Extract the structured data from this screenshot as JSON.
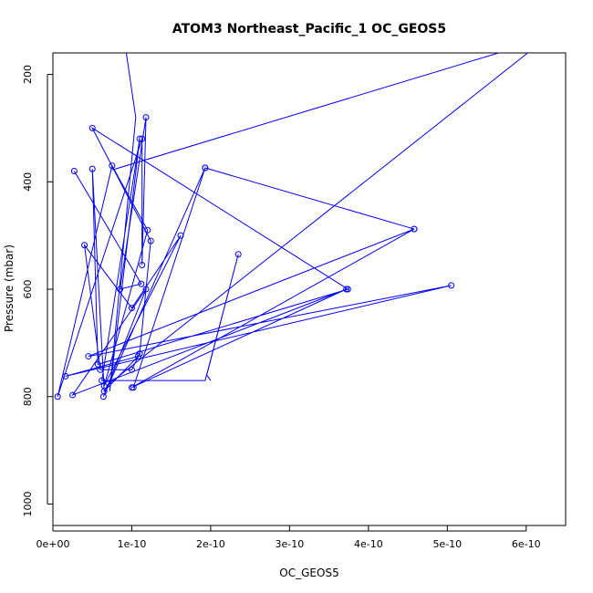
{
  "chart_data": {
    "type": "line",
    "title": "ATOM3 Northeast_Pacific_1 OC_GEOS5",
    "xlabel": "OC_GEOS5",
    "ylabel": "Pressure (mbar)",
    "xlim": [
      0,
      6.5e-10
    ],
    "ylim": [
      1040,
      160
    ],
    "y_reversed": true,
    "x_ticks": [
      0,
      1e-10,
      2e-10,
      3e-10,
      4e-10,
      5e-10,
      6e-10
    ],
    "x_tick_labels": [
      "0e+00",
      "1e-10",
      "2e-10",
      "3e-10",
      "4e-10",
      "5e-10",
      "6e-10"
    ],
    "y_ticks": [
      200,
      400,
      600,
      800,
      1000
    ],
    "y_tick_labels": [
      "200",
      "400",
      "600",
      "800",
      "1000"
    ],
    "grid": false,
    "legend": "none",
    "line_color": "#0000ff",
    "marker": "open-circle",
    "series": [
      {
        "points": [
          [
            9.3e-11,
            160
          ],
          [
            1.05e-10,
            280
          ],
          [
            7.2e-11,
            790
          ],
          [
            1.1e-10,
            320
          ],
          [
            6.2e-11,
            770
          ],
          [
            8e-11,
            770
          ],
          [
            1.93e-10,
            770
          ],
          [
            2.35e-10,
            535
          ],
          [
            1.95e-10,
            760
          ],
          [
            2e-10,
            770
          ]
        ],
        "show_markers": [
          false,
          false,
          false,
          true,
          true,
          false,
          false,
          true,
          false,
          false
        ]
      },
      {
        "points": [
          [
            2.7e-11,
            380
          ],
          [
            1.12e-10,
            590
          ],
          [
            8.5e-11,
            600
          ],
          [
            1.18e-10,
            280
          ],
          [
            1.13e-10,
            555
          ],
          [
            1.13e-10,
            320
          ],
          [
            6e-12,
            800
          ],
          [
            7.5e-11,
            370
          ],
          [
            1.2e-10,
            490
          ],
          [
            6.5e-11,
            780
          ],
          [
            1.62e-10,
            500
          ],
          [
            1e-10,
            635
          ],
          [
            4e-11,
            518
          ],
          [
            6e-11,
            750
          ],
          [
            1e-10,
            750
          ],
          [
            1.1e-10,
            720
          ],
          [
            1.24e-10,
            510
          ],
          [
            5e-11,
            300
          ],
          [
            3.74e-10,
            600
          ],
          [
            5.7e-11,
            740
          ],
          [
            5e-11,
            376
          ],
          [
            6.5e-11,
            790
          ],
          [
            1.08e-10,
            725
          ],
          [
            1.6e-11,
            762
          ],
          [
            5.05e-10,
            593
          ],
          [
            4.5e-11,
            725
          ],
          [
            4.58e-10,
            488
          ],
          [
            1e-10,
            783
          ],
          [
            3.72e-10,
            600
          ],
          [
            2.5e-11,
            797
          ],
          [
            1.18e-10,
            600
          ],
          [
            6.4e-11,
            800
          ],
          [
            1.93e-10,
            374
          ],
          [
            4.58e-10,
            488
          ],
          [
            1.93e-10,
            374
          ],
          [
            1.02e-10,
            783
          ]
        ],
        "show_markers": true
      }
    ],
    "extra_segments": [
      [
        [
          7.5e-11,
          378
        ],
        [
          5.65e-10,
          160
        ]
      ],
      [
        [
          6.8e-11,
          780
        ],
        [
          6.02e-10,
          160
        ]
      ]
    ]
  }
}
